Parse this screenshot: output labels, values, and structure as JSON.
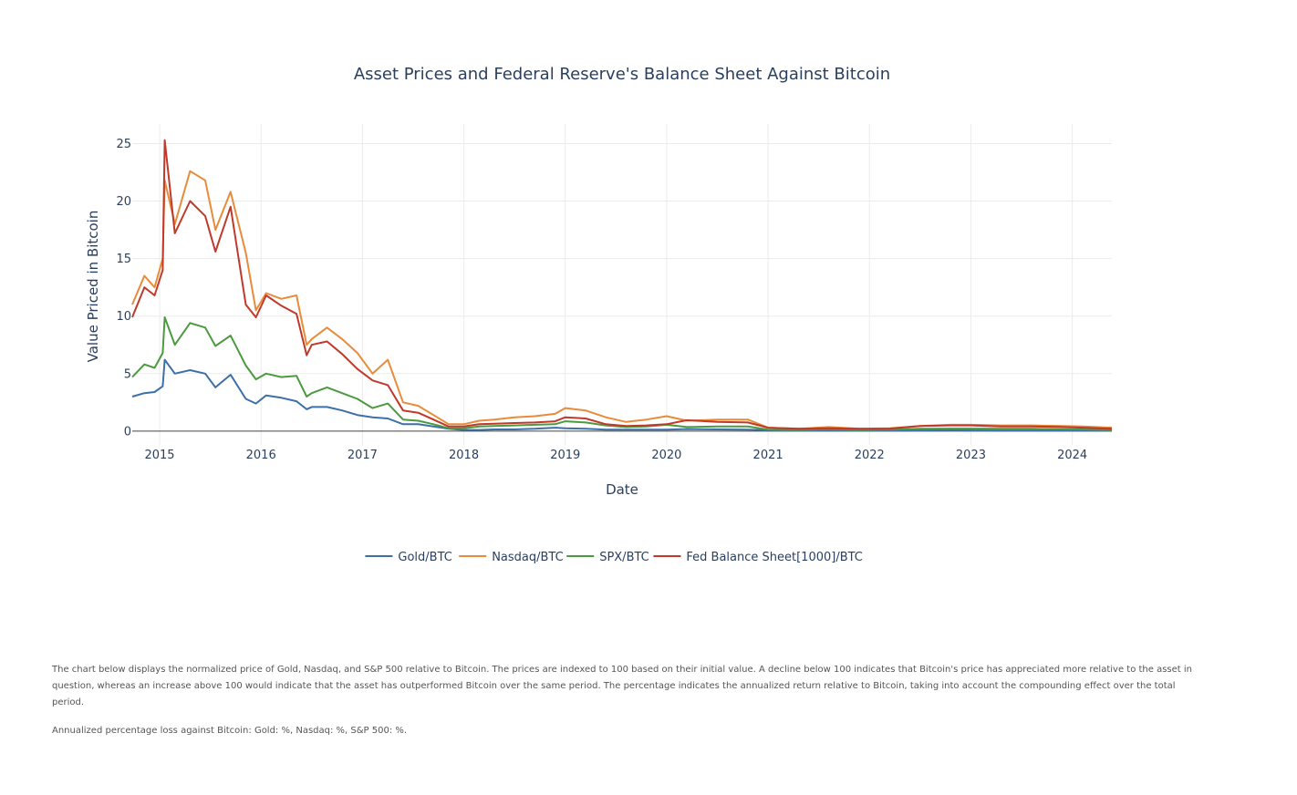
{
  "notes": {
    "description": "The chart below displays the normalized price of Gold, Nasdaq, and S&P 500 relative to Bitcoin. The prices are indexed to 100 based on their initial value. A decline below 100 indicates that Bitcoin's price has appreciated more relative to the asset in question, whereas an increase above 100 would indicate that the asset has outperformed Bitcoin over the same period. The percentage indicates the annualized return relative to Bitcoin, taking into account the compounding effect over the total period.",
    "annualized": "Annualized percentage loss against Bitcoin: Gold: %, Nasdaq: %, S&P 500: %."
  },
  "chart_data": {
    "type": "line",
    "title": "Asset Prices and Federal Reserve's Balance Sheet Against Bitcoin",
    "xlabel": "Date",
    "ylabel": "Value Priced in Bitcoin",
    "x_range": [
      2014.73,
      2024.39
    ],
    "ylim": [
      -1.2,
      26.7
    ],
    "x_ticks": [
      2015,
      2016,
      2017,
      2018,
      2019,
      2020,
      2021,
      2022,
      2023,
      2024
    ],
    "x_tick_labels": [
      "2015",
      "2016",
      "2017",
      "2018",
      "2019",
      "2020",
      "2021",
      "2022",
      "2023",
      "2024"
    ],
    "y_ticks": [
      0,
      5,
      10,
      15,
      20,
      25
    ],
    "y_tick_labels": [
      "0",
      "5",
      "10",
      "15",
      "20",
      "25"
    ],
    "grid": true,
    "legend_position": "bottom-center",
    "x": [
      2014.73,
      2014.85,
      2014.95,
      2015.03,
      2015.05,
      2015.15,
      2015.3,
      2015.45,
      2015.55,
      2015.7,
      2015.85,
      2015.95,
      2016.05,
      2016.2,
      2016.35,
      2016.45,
      2016.5,
      2016.65,
      2016.8,
      2016.95,
      2017.1,
      2017.25,
      2017.4,
      2017.55,
      2017.7,
      2017.85,
      2018.0,
      2018.15,
      2018.3,
      2018.5,
      2018.7,
      2018.9,
      2019.0,
      2019.2,
      2019.4,
      2019.6,
      2019.8,
      2020.0,
      2020.2,
      2020.5,
      2020.8,
      2021.0,
      2021.3,
      2021.6,
      2021.9,
      2022.2,
      2022.5,
      2022.8,
      2023.0,
      2023.3,
      2023.6,
      2023.9,
      2024.1,
      2024.39
    ],
    "series": [
      {
        "name": "Gold/BTC",
        "color": "#3d6fa8",
        "values": [
          3.0,
          3.3,
          3.4,
          3.9,
          6.2,
          5.0,
          5.3,
          5.0,
          3.8,
          4.9,
          2.8,
          2.4,
          3.1,
          2.9,
          2.6,
          1.9,
          2.1,
          2.1,
          1.8,
          1.4,
          1.2,
          1.1,
          0.6,
          0.6,
          0.4,
          0.2,
          0.1,
          0.1,
          0.15,
          0.15,
          0.2,
          0.3,
          0.25,
          0.2,
          0.12,
          0.12,
          0.12,
          0.12,
          0.18,
          0.15,
          0.12,
          0.08,
          0.05,
          0.05,
          0.05,
          0.05,
          0.07,
          0.08,
          0.07,
          0.06,
          0.06,
          0.05,
          0.04,
          0.03
        ]
      },
      {
        "name": "Nasdaq/BTC",
        "color": "#e88b3a",
        "values": [
          11.0,
          13.5,
          12.5,
          15.0,
          21.8,
          18.0,
          22.6,
          21.8,
          17.5,
          20.8,
          15.5,
          10.5,
          12.0,
          11.5,
          11.8,
          7.5,
          8.0,
          9.0,
          8.0,
          6.8,
          5.0,
          6.2,
          2.5,
          2.2,
          1.4,
          0.6,
          0.6,
          0.9,
          1.0,
          1.2,
          1.3,
          1.5,
          2.0,
          1.8,
          1.2,
          0.8,
          1.0,
          1.3,
          0.9,
          1.0,
          1.0,
          0.3,
          0.2,
          0.35,
          0.2,
          0.25,
          0.45,
          0.55,
          0.55,
          0.5,
          0.5,
          0.45,
          0.4,
          0.3
        ]
      },
      {
        "name": "SPX/BTC",
        "color": "#4c9a3f",
        "values": [
          4.7,
          5.8,
          5.5,
          6.8,
          9.9,
          7.5,
          9.4,
          9.0,
          7.4,
          8.3,
          5.7,
          4.5,
          5.0,
          4.7,
          4.8,
          3.0,
          3.3,
          3.8,
          3.3,
          2.8,
          2.0,
          2.4,
          1.0,
          0.9,
          0.6,
          0.25,
          0.25,
          0.4,
          0.45,
          0.5,
          0.55,
          0.6,
          0.85,
          0.75,
          0.5,
          0.35,
          0.4,
          0.55,
          0.35,
          0.4,
          0.4,
          0.12,
          0.1,
          0.15,
          0.1,
          0.12,
          0.2,
          0.22,
          0.22,
          0.2,
          0.2,
          0.17,
          0.15,
          0.1
        ]
      },
      {
        "name": "Fed Balance Sheet[1000]/BTC",
        "color": "#c0392b",
        "values": [
          9.9,
          12.5,
          11.8,
          14.0,
          25.3,
          17.2,
          20.0,
          18.7,
          15.6,
          19.5,
          11.0,
          9.9,
          11.8,
          10.9,
          10.2,
          6.6,
          7.5,
          7.8,
          6.7,
          5.4,
          4.4,
          4.0,
          1.8,
          1.6,
          1.0,
          0.4,
          0.4,
          0.6,
          0.65,
          0.7,
          0.75,
          0.85,
          1.2,
          1.1,
          0.6,
          0.45,
          0.5,
          0.6,
          0.95,
          0.8,
          0.75,
          0.3,
          0.2,
          0.25,
          0.2,
          0.22,
          0.45,
          0.5,
          0.5,
          0.4,
          0.4,
          0.35,
          0.3,
          0.2
        ]
      }
    ]
  }
}
